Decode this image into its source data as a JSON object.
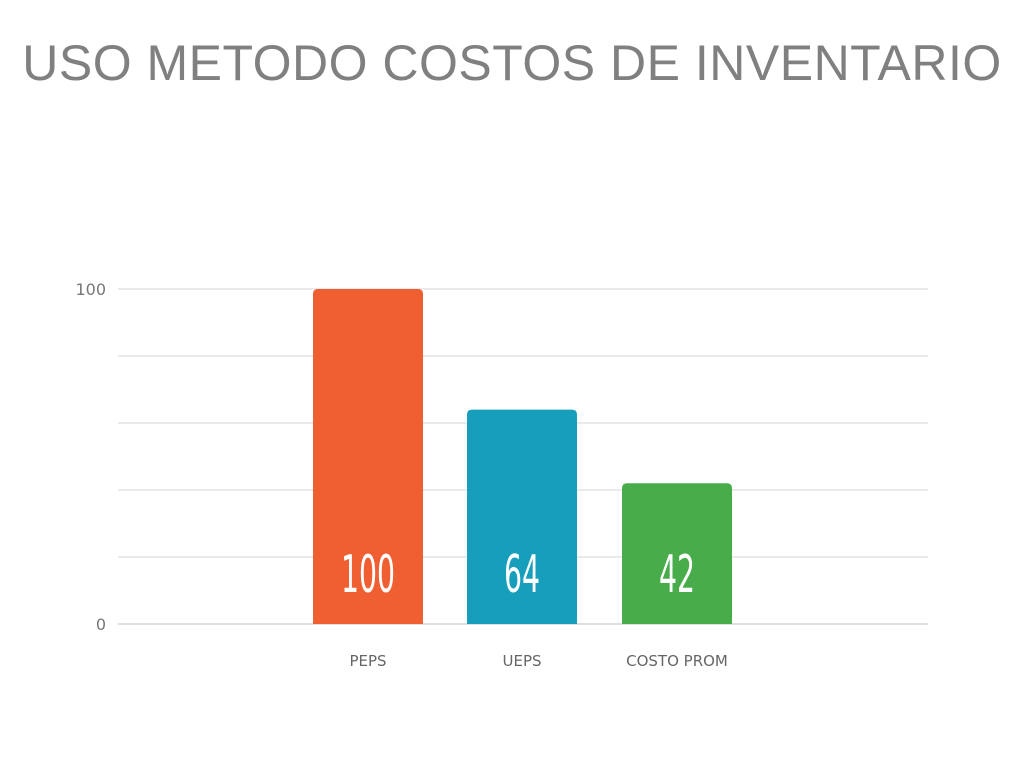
{
  "slide": {
    "title": "USO METODO COSTOS DE INVENTARIO"
  },
  "chart_data": {
    "type": "bar",
    "categories": [
      "PEPS",
      "UEPS",
      "COSTO PROM"
    ],
    "values": [
      100,
      64,
      42
    ],
    "data_labels": [
      "100",
      "64",
      "42"
    ],
    "colors": [
      "#F05F32",
      "#169EBB",
      "#48AC4B"
    ],
    "ylim": [
      0,
      100
    ],
    "yticks": [
      "0",
      "100"
    ],
    "gridlines": 6,
    "grid": true,
    "legend": "none",
    "title": "",
    "xlabel": "",
    "ylabel": ""
  }
}
